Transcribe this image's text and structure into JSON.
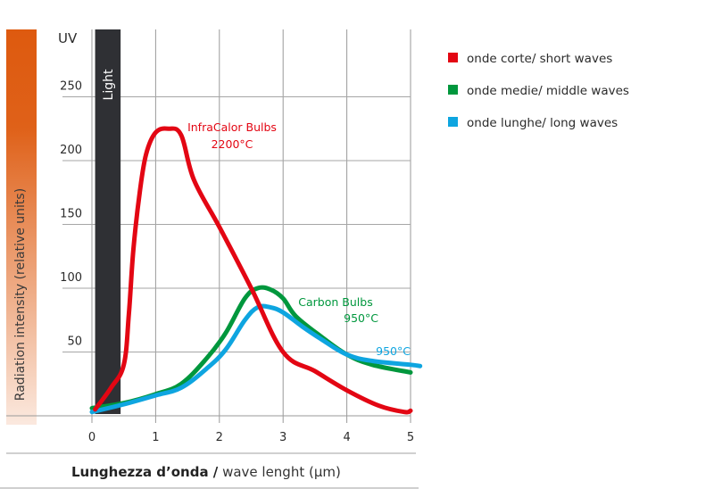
{
  "chart_data": {
    "type": "line",
    "title": "",
    "xlabel_bold": "Lunghezza d’onda /",
    "xlabel_regular": " wave lenght (µm)",
    "ylabel": "Radiation intensity (relative units)",
    "uv_label": "UV",
    "light_band_label": "Light",
    "light_band_range": [
      0.05,
      0.45
    ],
    "xlim": [
      0,
      5
    ],
    "ylim": [
      0,
      300
    ],
    "xticks": [
      0,
      1,
      2,
      3,
      4,
      5
    ],
    "xtick_labels": [
      "0",
      "1",
      "2",
      "3",
      "4",
      "5"
    ],
    "yticks": [
      50,
      100,
      150,
      200,
      250
    ],
    "ytick_labels": [
      "50",
      "100",
      "150",
      "200",
      "250"
    ],
    "grid": true,
    "legend_position": "right",
    "series": [
      {
        "name": "onde corte/ short waves",
        "color": "#e30613",
        "annotation": [
          "InfraCalor Bulbs",
          "2200°C"
        ],
        "x": [
          0.05,
          0.3,
          0.5,
          0.58,
          0.65,
          0.75,
          0.85,
          1.0,
          1.2,
          1.4,
          1.6,
          2.0,
          2.5,
          3.0,
          3.5,
          4.0,
          4.5,
          4.9,
          5.0
        ],
        "y": [
          5,
          22,
          40,
          80,
          130,
          175,
          205,
          222,
          225,
          220,
          185,
          148,
          100,
          50,
          35,
          20,
          8,
          3,
          4
        ]
      },
      {
        "name": "onde medie/ middle waves",
        "color": "#00973d",
        "annotation": [
          "Carbon Bulbs",
          "950°C"
        ],
        "x": [
          0.0,
          0.5,
          1.0,
          1.4,
          1.8,
          2.1,
          2.4,
          2.6,
          2.8,
          3.0,
          3.2,
          3.6,
          4.0,
          4.4,
          5.0
        ],
        "y": [
          6,
          10,
          17,
          25,
          45,
          65,
          92,
          100,
          99,
          92,
          78,
          62,
          48,
          40,
          34
        ]
      },
      {
        "name": "onde lunghe/ long waves",
        "color": "#0ea5e0",
        "annotation": [
          "950°C"
        ],
        "x": [
          0.0,
          0.5,
          1.0,
          1.4,
          1.8,
          2.1,
          2.4,
          2.6,
          2.8,
          3.0,
          3.3,
          3.6,
          4.0,
          4.4,
          5.0,
          5.15
        ],
        "y": [
          3,
          9,
          16,
          22,
          37,
          52,
          75,
          85,
          85,
          81,
          70,
          60,
          48,
          43,
          40,
          39
        ]
      }
    ]
  },
  "colors": {
    "intensity_bar_top": "#de5a0f",
    "intensity_bar_bottom": "#fbe9df",
    "light_band": "#2f3034",
    "grid": "#9a9a9a"
  }
}
